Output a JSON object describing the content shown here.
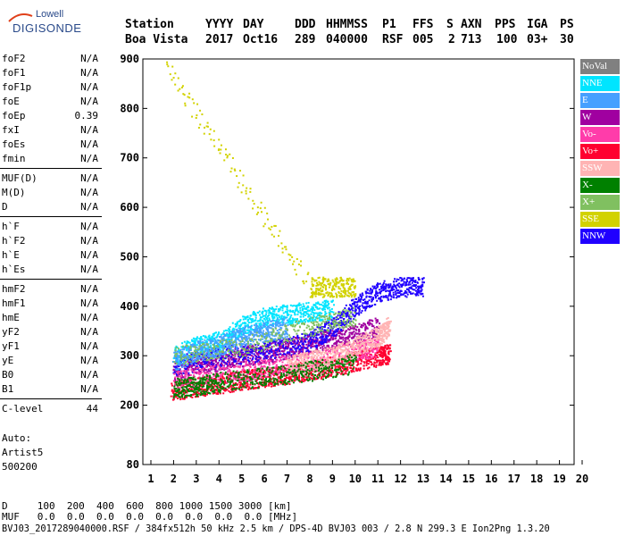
{
  "logo": {
    "line1": "Lowell",
    "line2": "DIGISONDE"
  },
  "header": {
    "labels": [
      "Station",
      "YYYY",
      "DAY",
      "DDD",
      "HHMMSS",
      "P1",
      "FFS",
      "S",
      "AXN",
      "PPS",
      "IGA",
      "PS"
    ],
    "values": [
      "Boa Vista",
      "2017",
      "Oct16",
      "289",
      "040000",
      "RSF",
      "005",
      "2",
      "713",
      "100",
      "03+",
      "30"
    ]
  },
  "params": {
    "group1": [
      {
        "name": "foF2",
        "value": "N/A"
      },
      {
        "name": "foF1",
        "value": "N/A"
      },
      {
        "name": "foF1p",
        "value": "N/A"
      },
      {
        "name": "foE",
        "value": "N/A"
      },
      {
        "name": "foEp",
        "value": "0.39"
      },
      {
        "name": "fxI",
        "value": "N/A"
      },
      {
        "name": "foEs",
        "value": "N/A"
      },
      {
        "name": "fmin",
        "value": "N/A"
      }
    ],
    "group2": [
      {
        "name": "MUF(D)",
        "value": "N/A"
      },
      {
        "name": "M(D)",
        "value": "N/A"
      },
      {
        "name": "D",
        "value": "N/A"
      }
    ],
    "group3": [
      {
        "name": "h`F",
        "value": "N/A"
      },
      {
        "name": "h`F2",
        "value": "N/A"
      },
      {
        "name": "h`E",
        "value": "N/A"
      },
      {
        "name": "h`Es",
        "value": "N/A"
      }
    ],
    "group4": [
      {
        "name": "hmF2",
        "value": "N/A"
      },
      {
        "name": "hmF1",
        "value": "N/A"
      },
      {
        "name": "hmE",
        "value": "N/A"
      },
      {
        "name": "yF2",
        "value": "N/A"
      },
      {
        "name": "yF1",
        "value": "N/A"
      },
      {
        "name": "yE",
        "value": "N/A"
      },
      {
        "name": "B0",
        "value": "N/A"
      },
      {
        "name": "B1",
        "value": "N/A"
      }
    ],
    "group5": [
      {
        "name": "C-level",
        "value": "44"
      }
    ]
  },
  "aux": {
    "line1": "Auto:",
    "line2": "Artist5",
    "line3": "500200"
  },
  "legend": [
    {
      "label": "NoVal",
      "color": "#808080"
    },
    {
      "label": "NNE",
      "color": "#00e5ff"
    },
    {
      "label": "E",
      "color": "#46a0ff"
    },
    {
      "label": "W",
      "color": "#a000a0"
    },
    {
      "label": "Vo-",
      "color": "#ff3caa"
    },
    {
      "label": "Vo+",
      "color": "#ff0030"
    },
    {
      "label": "SSW",
      "color": "#ffb4b4"
    },
    {
      "label": "X-",
      "color": "#008000"
    },
    {
      "label": "X+",
      "color": "#80c060"
    },
    {
      "label": "SSE",
      "color": "#d2d200"
    },
    {
      "label": "NNW",
      "color": "#2000ff"
    }
  ],
  "bottom": {
    "d_line": "D     100  200  400  600  800 1000 1500 3000 [km]",
    "muf_line": "MUF   0.0  0.0  0.0  0.0  0.0  0.0  0.0  0.0 [MHz]",
    "footer": "BVJ03_2017289040000.RSF / 384fx512h 50 kHz 2.5 km / DPS-4D BVJ03 003 / 2.8 N 299.3 E Ion2Png 1.3.20"
  },
  "chart_data": {
    "type": "scatter",
    "title": "",
    "xlabel": "",
    "ylabel": "",
    "xlim": [
      1,
      20
    ],
    "ylim": [
      80,
      900
    ],
    "x_ticks": [
      1,
      2,
      3,
      4,
      5,
      6,
      7,
      8,
      9,
      10,
      11,
      12,
      13,
      14,
      15,
      16,
      17,
      18,
      19,
      20
    ],
    "y_ticks": [
      80,
      200,
      300,
      400,
      500,
      600,
      700,
      800,
      900
    ],
    "grid": false,
    "legend_position": "right",
    "series": [
      {
        "name": "Vo+",
        "color": "#ff0030",
        "trace": {
          "x": [
            1.9,
            3,
            4,
            5,
            6,
            7,
            8,
            9,
            10,
            11,
            11.5
          ],
          "y": [
            230,
            238,
            245,
            252,
            258,
            264,
            272,
            280,
            290,
            300,
            305
          ]
        }
      },
      {
        "name": "W",
        "color": "#a000a0",
        "trace": {
          "x": [
            2,
            3,
            4,
            5,
            6,
            7,
            8,
            9,
            10,
            11
          ],
          "y": [
            270,
            285,
            290,
            300,
            305,
            315,
            325,
            335,
            345,
            360
          ]
        }
      },
      {
        "name": "NNE",
        "color": "#00e5ff",
        "trace": {
          "x": [
            2,
            3,
            4,
            5,
            6,
            7,
            8,
            9
          ],
          "y": [
            300,
            320,
            330,
            360,
            380,
            385,
            390,
            395
          ]
        }
      },
      {
        "name": "NNW",
        "color": "#2000ff",
        "trace": {
          "x": [
            2,
            4,
            6,
            8,
            9,
            10,
            11,
            12,
            13
          ],
          "y": [
            280,
            300,
            310,
            330,
            360,
            400,
            430,
            440,
            440
          ]
        }
      },
      {
        "name": "E",
        "color": "#46a0ff",
        "trace": {
          "x": [
            2,
            3,
            4,
            5,
            6,
            7
          ],
          "y": [
            290,
            310,
            320,
            340,
            350,
            360
          ]
        }
      },
      {
        "name": "Vo-",
        "color": "#ff3caa",
        "trace": {
          "x": [
            2,
            4,
            6,
            8,
            10,
            11
          ],
          "y": [
            250,
            265,
            275,
            290,
            310,
            320
          ]
        }
      },
      {
        "name": "SSW",
        "color": "#ffb4b4",
        "trace": {
          "x": [
            7,
            8,
            9,
            10,
            11,
            11.5
          ],
          "y": [
            280,
            290,
            300,
            320,
            340,
            360
          ]
        }
      },
      {
        "name": "X-",
        "color": "#008000",
        "trace": {
          "x": [
            2,
            3,
            4,
            6,
            8,
            10
          ],
          "y": [
            235,
            240,
            248,
            258,
            270,
            285
          ]
        }
      },
      {
        "name": "X+",
        "color": "#80c060",
        "trace": {
          "x": [
            2,
            5,
            8,
            10
          ],
          "y": [
            300,
            320,
            360,
            380
          ]
        }
      },
      {
        "name": "SSE",
        "color": "#d2d200",
        "trace": {
          "x": [
            1.7,
            8,
            9,
            10
          ],
          "y": [
            880,
            440,
            440,
            440
          ]
        }
      }
    ]
  }
}
